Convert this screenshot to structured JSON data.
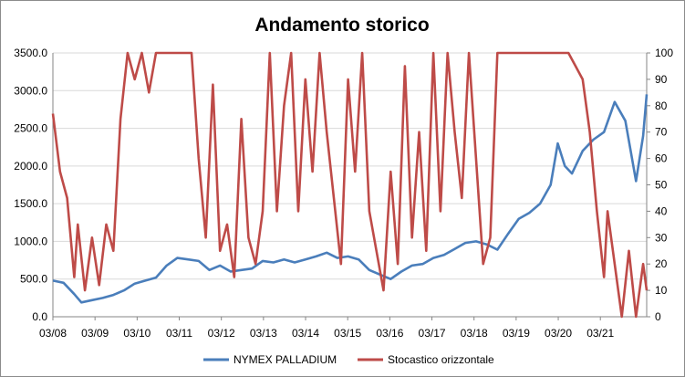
{
  "chart_data": {
    "type": "line",
    "title": "Andamento storico",
    "xlabel": "",
    "ylabel": "",
    "legend_position": "bottom",
    "grid": true,
    "x_ticks": [
      "03/08",
      "03/09",
      "03/10",
      "03/11",
      "03/12",
      "03/13",
      "03/14",
      "03/15",
      "03/16",
      "03/17",
      "03/18",
      "03/19",
      "03/20",
      "03/21"
    ],
    "y_left": {
      "min": 0,
      "max": 3500,
      "step": 500,
      "ticks": [
        "0.0",
        "500.0",
        "1000.0",
        "1500.0",
        "2000.0",
        "2500.0",
        "3000.0",
        "3500.0"
      ]
    },
    "y_right": {
      "min": 0,
      "max": 100,
      "step": 10,
      "ticks": [
        "0",
        "10",
        "20",
        "30",
        "40",
        "50",
        "60",
        "70",
        "80",
        "90",
        "100"
      ]
    },
    "x_range": [
      "2008-03",
      "2022-02"
    ],
    "series": [
      {
        "name": "NYMEX PALLADIUM",
        "axis": "left",
        "color": "#4a7ebb",
        "x": [
          "2008-03",
          "2008-06",
          "2008-09",
          "2008-11",
          "2009-02",
          "2009-05",
          "2009-08",
          "2009-11",
          "2010-02",
          "2010-05",
          "2010-08",
          "2010-11",
          "2011-02",
          "2011-05",
          "2011-08",
          "2011-11",
          "2012-02",
          "2012-05",
          "2012-08",
          "2012-11",
          "2013-02",
          "2013-05",
          "2013-08",
          "2013-11",
          "2014-02",
          "2014-05",
          "2014-08",
          "2014-11",
          "2015-02",
          "2015-05",
          "2015-08",
          "2015-11",
          "2016-02",
          "2016-05",
          "2016-08",
          "2016-11",
          "2017-02",
          "2017-05",
          "2017-08",
          "2017-11",
          "2018-02",
          "2018-05",
          "2018-08",
          "2018-11",
          "2019-02",
          "2019-05",
          "2019-08",
          "2019-11",
          "2020-01",
          "2020-03",
          "2020-05",
          "2020-08",
          "2020-11",
          "2021-02",
          "2021-05",
          "2021-08",
          "2021-11",
          "2022-01",
          "2022-02"
        ],
        "values": [
          480,
          450,
          300,
          190,
          220,
          250,
          290,
          350,
          440,
          480,
          520,
          680,
          780,
          760,
          740,
          620,
          680,
          600,
          620,
          640,
          740,
          720,
          760,
          720,
          760,
          800,
          850,
          780,
          800,
          760,
          620,
          560,
          500,
          600,
          680,
          700,
          780,
          820,
          900,
          980,
          1000,
          960,
          890,
          1100,
          1300,
          1380,
          1500,
          1750,
          2300,
          2000,
          1900,
          2200,
          2350,
          2450,
          2850,
          2600,
          1800,
          2400,
          2950
        ]
      },
      {
        "name": "Stocastico orizzontale",
        "axis": "right",
        "color": "#be4b48",
        "x": [
          "2008-03",
          "2008-05",
          "2008-07",
          "2008-09",
          "2008-10",
          "2008-12",
          "2009-02",
          "2009-04",
          "2009-06",
          "2009-08",
          "2009-10",
          "2009-12",
          "2010-02",
          "2010-04",
          "2010-06",
          "2010-08",
          "2010-10",
          "2010-12",
          "2011-03",
          "2011-06",
          "2011-08",
          "2011-10",
          "2011-12",
          "2012-02",
          "2012-04",
          "2012-06",
          "2012-08",
          "2012-10",
          "2012-12",
          "2013-02",
          "2013-04",
          "2013-06",
          "2013-08",
          "2013-10",
          "2013-12",
          "2014-02",
          "2014-04",
          "2014-06",
          "2014-08",
          "2014-10",
          "2014-12",
          "2015-02",
          "2015-04",
          "2015-06",
          "2015-08",
          "2015-10",
          "2015-12",
          "2016-02",
          "2016-04",
          "2016-06",
          "2016-08",
          "2016-10",
          "2016-12",
          "2017-02",
          "2017-04",
          "2017-06",
          "2017-08",
          "2017-10",
          "2017-12",
          "2018-02",
          "2018-04",
          "2018-06",
          "2018-08",
          "2018-10",
          "2018-12",
          "2019-03",
          "2019-06",
          "2019-09",
          "2019-12",
          "2020-02",
          "2020-04",
          "2020-06",
          "2020-08",
          "2020-10",
          "2020-12",
          "2021-02",
          "2021-03",
          "2021-05",
          "2021-07",
          "2021-09",
          "2021-11",
          "2022-01",
          "2022-02"
        ],
        "values": [
          77,
          55,
          45,
          15,
          35,
          10,
          30,
          12,
          35,
          25,
          75,
          100,
          90,
          100,
          85,
          100,
          100,
          100,
          100,
          100,
          60,
          30,
          88,
          25,
          35,
          15,
          75,
          30,
          20,
          40,
          100,
          40,
          80,
          100,
          40,
          90,
          55,
          100,
          70,
          45,
          20,
          90,
          55,
          100,
          40,
          25,
          10,
          55,
          20,
          95,
          30,
          70,
          25,
          100,
          40,
          100,
          70,
          45,
          100,
          60,
          20,
          30,
          100,
          100,
          100,
          100,
          100,
          100,
          100,
          100,
          100,
          95,
          90,
          70,
          40,
          15,
          40,
          20,
          0,
          25,
          0,
          20,
          10
        ]
      }
    ]
  }
}
